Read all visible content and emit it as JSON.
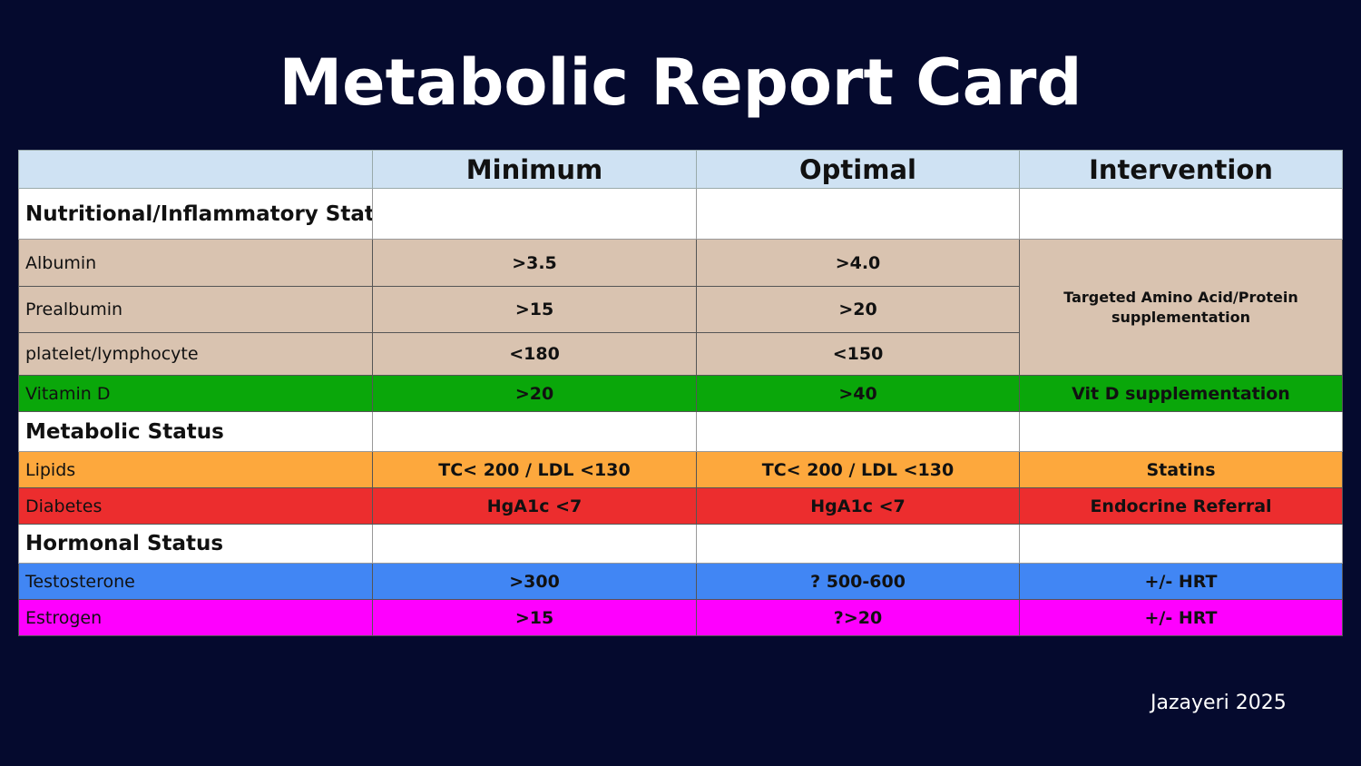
{
  "title": "Metabolic Report Card",
  "columns": [
    "",
    "Minimum",
    "Optimal",
    "Intervention"
  ],
  "sections": [
    {
      "label": "Nutritional/Inflammatory Status"
    },
    {
      "label": "Metabolic Status"
    },
    {
      "label": "Hormonal Status"
    }
  ],
  "rows": {
    "albumin": {
      "name": "Albumin",
      "min": ">3.5",
      "opt": ">4.0"
    },
    "prealbumin": {
      "name": "Prealbumin",
      "min": ">15",
      "opt": ">20"
    },
    "plr": {
      "name": "platelet/lymphocyte",
      "min": "<180",
      "opt": "<150"
    },
    "nutrition_intervention": "Targeted Amino Acid/Protein supplementation",
    "vitd": {
      "name": "Vitamin D",
      "min": ">20",
      "opt": ">40",
      "int": "Vit D supplementation"
    },
    "lipids": {
      "name": "Lipids",
      "min": "TC< 200 / LDL <130",
      "opt": "TC< 200 / LDL <130",
      "int": "Statins"
    },
    "diabetes": {
      "name": "Diabetes",
      "min": "HgA1c <7",
      "opt": "HgA1c <7",
      "int": "Endocrine Referral"
    },
    "testosterone": {
      "name": "Testosterone",
      "min": ">300",
      "opt": "? 500-600",
      "int": "+/- HRT"
    },
    "estrogen": {
      "name": "Estrogen",
      "min": ">15",
      "opt": "?>20",
      "int": "+/- HRT"
    }
  },
  "colors": {
    "background": "#050a2e",
    "header": "#cfe2f3",
    "nutrition": "#d9c3b0",
    "vitd": "#0aa70a",
    "lipids": "#fda83d",
    "diabetes": "#ec2d2e",
    "testosterone": "#4186f4",
    "estrogen": "#fe00fe"
  },
  "footer": "Jazayeri 2025"
}
